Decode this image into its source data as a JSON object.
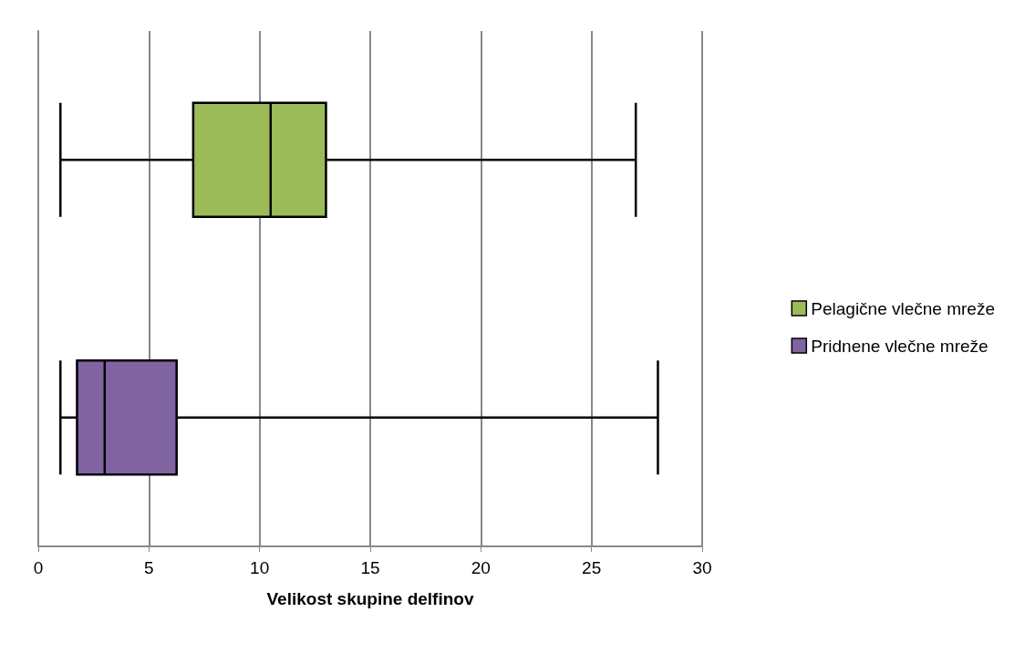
{
  "chart_data": {
    "type": "box",
    "orientation": "horizontal",
    "categories": [
      null,
      null
    ],
    "xlabel": "Velikost skupine delfinov",
    "xlim": [
      0,
      30
    ],
    "xticks": [
      0,
      5,
      10,
      15,
      20,
      25,
      30
    ],
    "grid": "x",
    "legend": "right",
    "series": [
      {
        "name": "Pelagične vlečne mreže",
        "color": "#9bbb59",
        "boxes": [
          {
            "low": 1,
            "q1": 7,
            "median": 10.5,
            "q3": 13,
            "high": 27
          },
          null
        ]
      },
      {
        "name": "Pridnene vlečne mreže",
        "color": "#8064a2",
        "boxes": [
          null,
          {
            "low": 1,
            "q1": 1.75,
            "median": 3,
            "q3": 6.25,
            "high": 28
          }
        ]
      }
    ]
  }
}
